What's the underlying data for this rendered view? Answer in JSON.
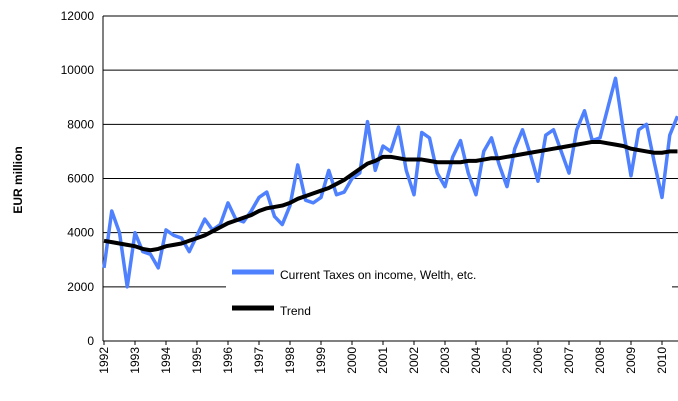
{
  "chart_data": {
    "type": "line",
    "y_label": "EUR million",
    "categories": [
      "1992",
      null,
      null,
      null,
      "1993",
      null,
      null,
      null,
      "1994",
      null,
      null,
      null,
      "1995",
      null,
      null,
      null,
      "1996",
      null,
      null,
      null,
      "1997",
      null,
      null,
      null,
      "1998",
      null,
      null,
      null,
      "1999",
      null,
      null,
      null,
      "2000",
      null,
      null,
      null,
      "2001",
      null,
      null,
      null,
      "2002",
      null,
      null,
      null,
      "2003",
      null,
      null,
      null,
      "2004",
      null,
      null,
      null,
      "2005",
      null,
      null,
      null,
      "2006",
      null,
      null,
      null,
      "2007",
      null,
      null,
      null,
      "2008",
      null,
      null,
      null,
      "2009",
      null,
      null,
      null,
      "2010",
      null,
      null
    ],
    "series": [
      {
        "name": "Current Taxes on income, Welth, etc.",
        "color": "#4f81ff",
        "values": [
          2700,
          4800,
          4000,
          2000,
          4000,
          3300,
          3200,
          2700,
          4100,
          3900,
          3800,
          3300,
          3900,
          4500,
          4100,
          4300,
          5100,
          4500,
          4400,
          4800,
          5300,
          5500,
          4600,
          4300,
          5000,
          6500,
          5200,
          5100,
          5300,
          6300,
          5400,
          5500,
          6000,
          6200,
          8100,
          6300,
          7200,
          7000,
          7900,
          6300,
          5400,
          7700,
          7500,
          6200,
          5700,
          6800,
          7400,
          6200,
          5400,
          7000,
          7500,
          6500,
          5700,
          7100,
          7800,
          6900,
          5900,
          7600,
          7800,
          7000,
          6200,
          7800,
          8500,
          7400,
          7500,
          8600,
          9700,
          7800,
          6100,
          7800,
          8000,
          6600,
          5300,
          7600,
          8300
        ]
      },
      {
        "name": "Trend",
        "color": "#000000",
        "values": [
          3700,
          3650,
          3600,
          3550,
          3500,
          3400,
          3350,
          3400,
          3500,
          3550,
          3600,
          3700,
          3800,
          3900,
          4050,
          4200,
          4350,
          4450,
          4550,
          4650,
          4800,
          4900,
          4950,
          5000,
          5100,
          5250,
          5350,
          5450,
          5550,
          5650,
          5800,
          5950,
          6150,
          6350,
          6550,
          6650,
          6800,
          6800,
          6750,
          6700,
          6700,
          6700,
          6650,
          6600,
          6600,
          6600,
          6600,
          6650,
          6650,
          6700,
          6750,
          6750,
          6800,
          6850,
          6900,
          6950,
          7000,
          7050,
          7100,
          7150,
          7200,
          7250,
          7300,
          7350,
          7350,
          7300,
          7250,
          7200,
          7100,
          7050,
          7000,
          6950,
          6950,
          7000,
          7000
        ]
      }
    ],
    "ylim": [
      0,
      12000
    ],
    "yticks": [
      0,
      2000,
      4000,
      6000,
      8000,
      10000,
      12000
    ],
    "grid": true
  }
}
